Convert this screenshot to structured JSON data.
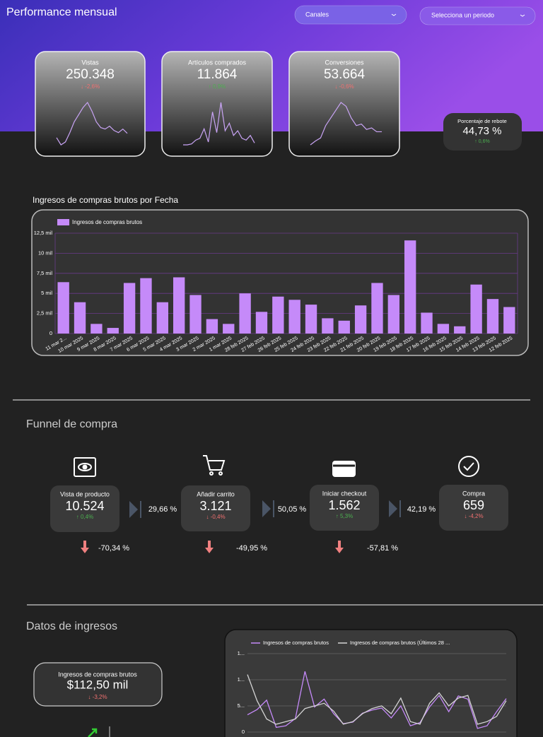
{
  "header": {
    "title": "Performance mensual",
    "filters": [
      "Canales",
      "Selecciona un periodo"
    ]
  },
  "kpis": [
    {
      "label": "Vistas",
      "value": "250.348",
      "change": "↓ -2,6%",
      "trend": "down",
      "spark": [
        18,
        8,
        12,
        25,
        40,
        50,
        60,
        67,
        55,
        40,
        32,
        30,
        34,
        28,
        25,
        30,
        24
      ]
    },
    {
      "label": "Artículos comprados",
      "value": "11.864",
      "change": "↑ 0,9%",
      "trend": "up",
      "spark": [
        15,
        15,
        16,
        20,
        22,
        32,
        18,
        50,
        28,
        60,
        30,
        38,
        25,
        30,
        22,
        20,
        25,
        17
      ]
    },
    {
      "label": "Conversiones",
      "value": "53.664",
      "change": "↓ -0,6%",
      "trend": "down",
      "spark": [
        5,
        10,
        14,
        30,
        40,
        50,
        60,
        55,
        40,
        30,
        32,
        25,
        27,
        22,
        22
      ]
    },
    {
      "label": "Porcentaje de rebote",
      "value": "44,73 %",
      "change": "↑ 0,6%",
      "trend": "up"
    }
  ],
  "chart_data": [
    {
      "type": "bar",
      "title": "Ingresos de compras brutos por Fecha",
      "series": [
        {
          "name": "Ingresos de compras brutos",
          "color": "#c58af9",
          "values": [
            6400,
            3900,
            1200,
            700,
            6300,
            6900,
            3900,
            7000,
            4800,
            1800,
            1200,
            5000,
            2700,
            4600,
            4200,
            3600,
            1900,
            1600,
            3500,
            6300,
            4800,
            11600,
            2600,
            1200,
            900,
            6100,
            4300,
            3300
          ]
        }
      ],
      "categories": [
        "11 mar 2...",
        "10 mar 2025",
        "9 mar 2025",
        "8 mar 2025",
        "7 mar 2025",
        "6 mar 2025",
        "5 mar 2025",
        "4 mar 2025",
        "3 mar 2025",
        "2 mar 2025",
        "1 mar 2025",
        "28 feb 2025",
        "27 feb 2025",
        "26 feb 2025",
        "25 feb 2025",
        "24 feb 2025",
        "23 feb 2025",
        "22 feb 2025",
        "21 feb 2025",
        "20 feb 2025",
        "19 feb 2025",
        "18 feb 2025",
        "17 feb 2025",
        "16 feb 2025",
        "15 feb 2025",
        "14 feb 2025",
        "13 feb 2025",
        "12 feb 2025"
      ],
      "ylim": [
        0,
        12500
      ],
      "yticks": [
        0,
        {
          "value": 2500,
          "label": "2,5 mil"
        },
        {
          "value": 5000,
          "label": "5 mil"
        },
        {
          "value": 7500,
          "label": "7,5 mil"
        },
        {
          "value": 10000,
          "label": "10 mil"
        },
        {
          "value": 12500,
          "label": "12,5 mil"
        }
      ],
      "grid": true
    },
    {
      "type": "line",
      "series": [
        {
          "name": "Ingresos de compras brutos",
          "color": "#c58af9",
          "values": [
            3300,
            4300,
            6100,
            900,
            1200,
            2600,
            11600,
            4800,
            6300,
            3500,
            1600,
            1900,
            3600,
            4200,
            4600,
            2700,
            5000,
            1200,
            1800,
            4800,
            7000,
            3900,
            6900,
            6300,
            700,
            1200,
            3900,
            6400
          ]
        },
        {
          "name": "Ingresos de compras brutos (Últimos 28 ...",
          "color": "#d4d4d4",
          "values": [
            11000,
            6000,
            2500,
            1500,
            2000,
            2500,
            4500,
            5000,
            5500,
            4000,
            1500,
            2000,
            3500,
            4500,
            5000,
            3500,
            6500,
            2000,
            1500,
            5500,
            7500,
            5000,
            6500,
            7000,
            1500,
            2000,
            3000,
            6000
          ]
        }
      ],
      "ylim": [
        0,
        15000
      ],
      "yticks": [
        0,
        {
          "value": 5000,
          "label": "5..."
        },
        {
          "value": 10000,
          "label": "1..."
        },
        {
          "value": 15000,
          "label": "1..."
        }
      ],
      "grid": true
    }
  ],
  "funnel": {
    "title": "Funnel de compra",
    "steps": [
      {
        "label": "Vista de producto",
        "value": "10.524",
        "change": "↑ 0,4%",
        "trend": "up"
      },
      {
        "label": "Añadir carrito",
        "value": "3.121",
        "change": "↓ -0,4%",
        "trend": "down"
      },
      {
        "label": "Iniciar checkout",
        "value": "1.562",
        "change": "↑ 5,3%",
        "trend": "up"
      },
      {
        "label": "Compra",
        "value": "659",
        "change": "↓ -4,2%",
        "trend": "down"
      }
    ],
    "rates": [
      "29,66 %",
      "50,05 %",
      "42,19 %"
    ],
    "drops": [
      "-70,34 %",
      "-49,95 %",
      "-57,81 %"
    ]
  },
  "income": {
    "title": "Datos de ingresos",
    "kpi": {
      "label": "Ingresos de compras brutos",
      "value": "$112,50 mil",
      "change": "↓ -3,2%",
      "trend": "down"
    }
  }
}
